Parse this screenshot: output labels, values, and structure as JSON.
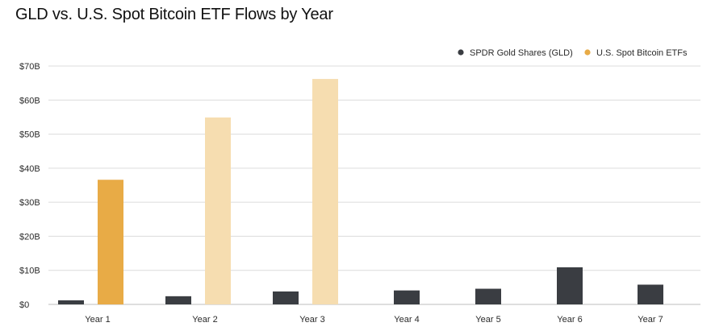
{
  "title": "GLD vs. U.S. Spot Bitcoin ETF Flows by Year",
  "chart_data": {
    "type": "bar",
    "title": "GLD vs. U.S. Spot Bitcoin ETF Flows by Year",
    "categories": [
      "Year 1",
      "Year 2",
      "Year 3",
      "Year 4",
      "Year 5",
      "Year 6",
      "Year 7"
    ],
    "series": [
      {
        "name": "SPDR Gold Shares (GLD)",
        "color": "#3a3d42",
        "values": [
          1.2,
          2.4,
          3.8,
          4.1,
          4.6,
          10.9,
          5.8
        ]
      },
      {
        "name": "U.S. Spot Bitcoin ETFs",
        "color": "#e8ab46",
        "values": [
          36.6,
          54.9,
          66.2,
          null,
          null,
          null,
          null
        ],
        "bar_colors": [
          "#e8ab46",
          "#f6ddb0",
          "#f6ddb0",
          null,
          null,
          null,
          null
        ]
      }
    ],
    "ylim": [
      0,
      70
    ],
    "yticks": [
      0,
      10,
      20,
      30,
      40,
      50,
      60,
      70
    ],
    "ytick_labels": [
      "$0",
      "$10B",
      "$20B",
      "$30B",
      "$40B",
      "$50B",
      "$60B",
      "$70B"
    ],
    "xlabel": "",
    "ylabel": "",
    "grid": true,
    "legend_position": "top-right"
  }
}
